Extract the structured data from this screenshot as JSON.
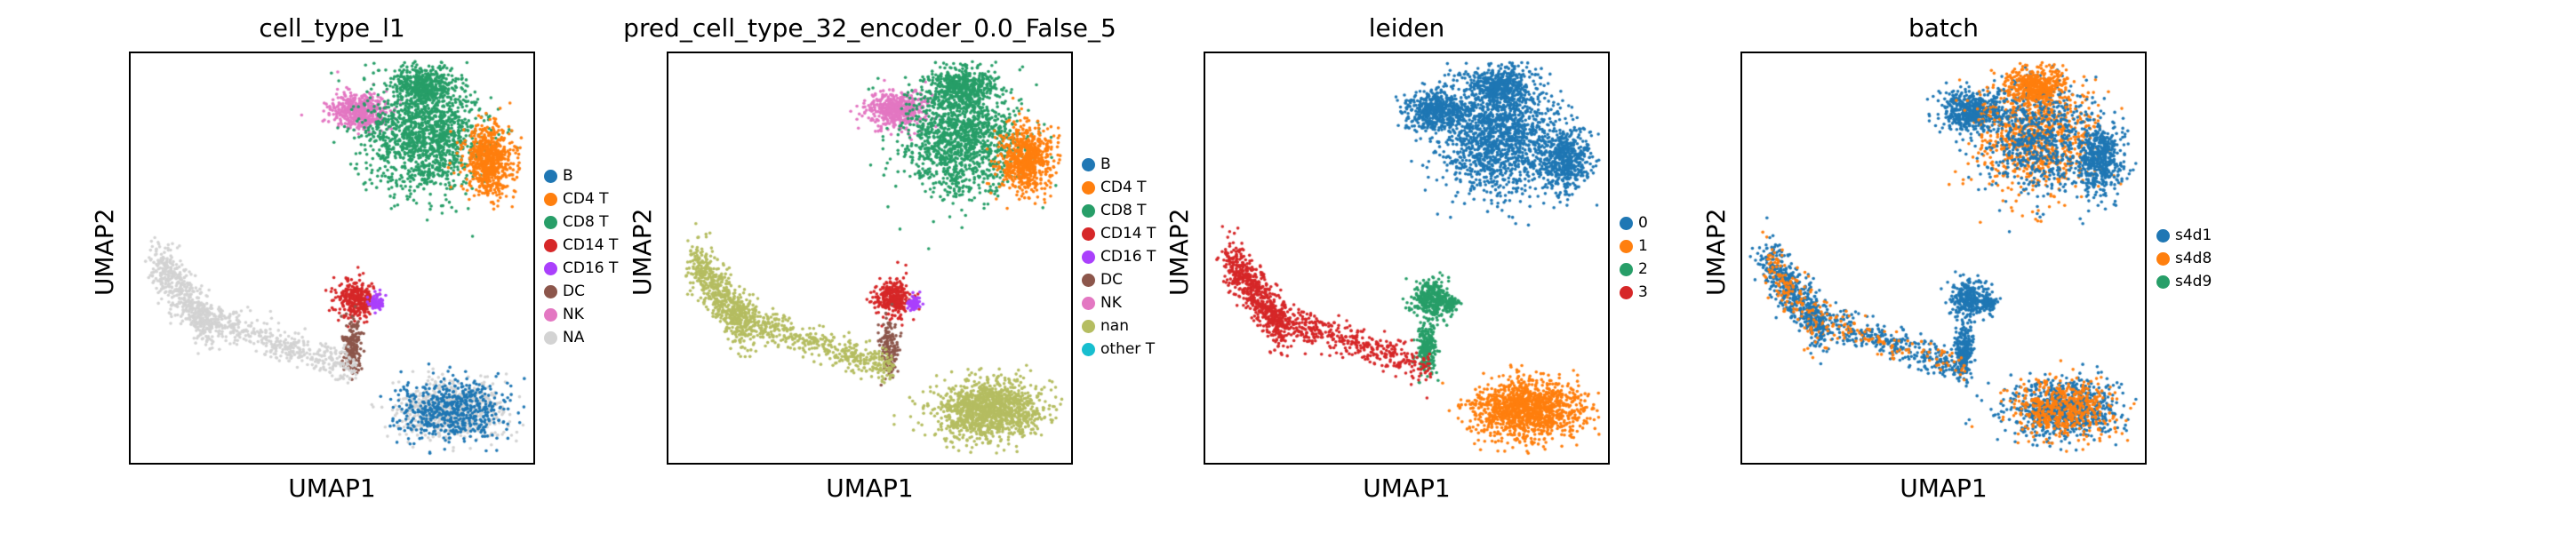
{
  "chart_data": [
    {
      "type": "scatter",
      "title": "cell_type_l1",
      "xlabel": "UMAP1",
      "ylabel": "UMAP2",
      "ticks": false,
      "legend_placement": "right",
      "categories": [
        "B",
        "CD4 T",
        "CD8 T",
        "CD14 T",
        "CD16 T",
        "DC",
        "NK",
        "NA"
      ],
      "colors": [
        "#1f77b4",
        "#ff7f0e",
        "#279e68",
        "#d62728",
        "#aa40fc",
        "#8c564b",
        "#e377c2",
        "#d3d3d3"
      ]
    },
    {
      "type": "scatter",
      "title": "pred_cell_type_32_encoder_0.0_False_5",
      "xlabel": "UMAP1",
      "ylabel": "UMAP2",
      "ticks": false,
      "legend_placement": "right",
      "categories": [
        "B",
        "CD4 T",
        "CD8 T",
        "CD14 T",
        "CD16 T",
        "DC",
        "NK",
        "nan",
        "other T"
      ],
      "colors": [
        "#1f77b4",
        "#ff7f0e",
        "#279e68",
        "#d62728",
        "#aa40fc",
        "#8c564b",
        "#e377c2",
        "#b5bd61",
        "#17becf"
      ]
    },
    {
      "type": "scatter",
      "title": "leiden",
      "xlabel": "UMAP1",
      "ylabel": "UMAP2",
      "ticks": false,
      "legend_placement": "right",
      "categories": [
        "0",
        "1",
        "2",
        "3"
      ],
      "colors": [
        "#1f77b4",
        "#ff7f0e",
        "#279e68",
        "#d62728"
      ]
    },
    {
      "type": "scatter",
      "title": "batch",
      "xlabel": "UMAP1",
      "ylabel": "UMAP2",
      "ticks": false,
      "legend_placement": "right",
      "categories": [
        "s4d1",
        "s4d8",
        "s4d9"
      ],
      "colors": [
        "#1f77b4",
        "#ff7f0e",
        "#279e68"
      ]
    }
  ]
}
